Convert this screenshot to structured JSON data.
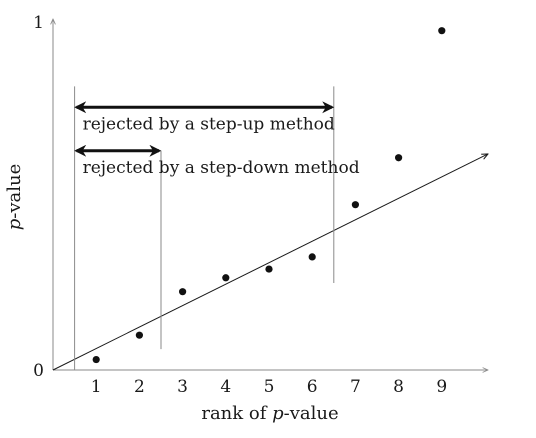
{
  "chart_data": {
    "type": "scatter",
    "xlabel_prefix": "rank of ",
    "xlabel_italic": "p",
    "xlabel_suffix": "-value",
    "ylabel_italic": "p",
    "ylabel_suffix": "-value",
    "x_ticks": [
      "1",
      "2",
      "3",
      "4",
      "5",
      "6",
      "7",
      "8",
      "9"
    ],
    "y_ticks": [
      "0",
      "1"
    ],
    "xlim": [
      0,
      10
    ],
    "ylim": [
      0,
      1
    ],
    "points": [
      {
        "x": 1,
        "y": 0.03
      },
      {
        "x": 2,
        "y": 0.1
      },
      {
        "x": 3,
        "y": 0.225
      },
      {
        "x": 4,
        "y": 0.265
      },
      {
        "x": 5,
        "y": 0.29
      },
      {
        "x": 6,
        "y": 0.325
      },
      {
        "x": 7,
        "y": 0.475
      },
      {
        "x": 8,
        "y": 0.61
      },
      {
        "x": 9,
        "y": 0.975
      }
    ],
    "reference_line": {
      "x_start": 0,
      "x_end": 10,
      "slope": 0.062
    },
    "annotations": [
      {
        "text": "rejected by a step-up method",
        "x_from": 0.5,
        "x_to": 6.5,
        "y": 0.755
      },
      {
        "text": "rejected by a step-down method",
        "x_from": 0.5,
        "x_to": 2.5,
        "y": 0.63
      }
    ],
    "vertical_lines": [
      {
        "x": 0.5,
        "y_from": 0,
        "y_to": 0.815
      },
      {
        "x": 2.5,
        "y_from": 0.06,
        "y_to": 0.63
      },
      {
        "x": 6.5,
        "y_from": 0.25,
        "y_to": 0.815
      }
    ],
    "grid": false,
    "legend": "none",
    "colors": {
      "points": "#111111",
      "axes": "#8a8a8a",
      "text": "#1a1a1a"
    }
  }
}
